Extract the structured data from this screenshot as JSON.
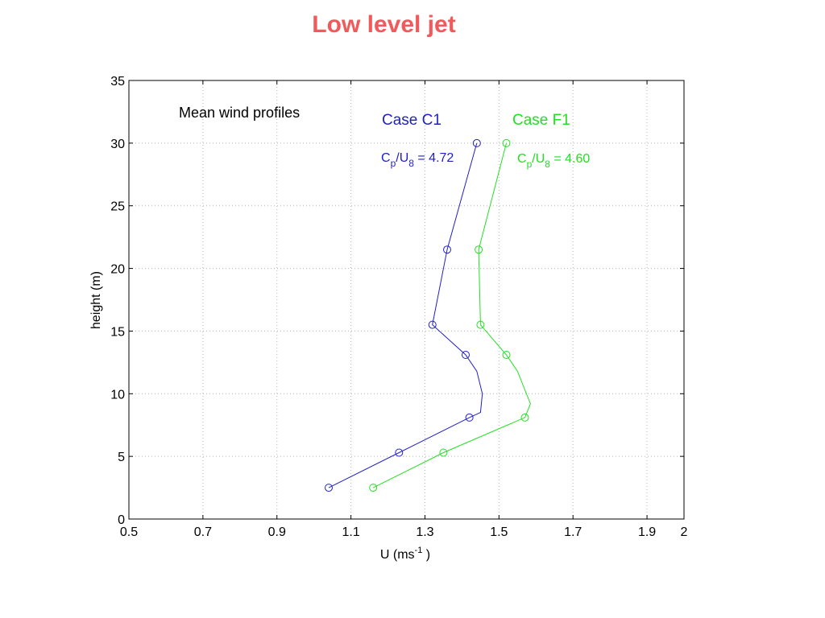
{
  "slide": {
    "title": "Low level jet"
  },
  "chart_data": {
    "type": "line",
    "title": "",
    "xlabel": "U (ms",
    "xlabel_sup": "-1",
    "xlabel_end": " )",
    "ylabel": "height (m)",
    "xlim": [
      0.5,
      2
    ],
    "ylim": [
      0,
      35
    ],
    "xticks": [
      "0.5",
      "0.7",
      "0.9",
      "1.1",
      "1.3",
      "1.5",
      "1.7",
      "1.9",
      "2"
    ],
    "yticks": [
      "0",
      "5",
      "10",
      "15",
      "20",
      "25",
      "30",
      "35"
    ],
    "grid": true,
    "annotation": "Mean wind profiles",
    "series": [
      {
        "name": "Case C1",
        "color": "#1f1fc8",
        "ratio_label": {
          "main": "C",
          "sub1": "p",
          "mid": "/U",
          "sub2": "8",
          "tail": " = 4.72"
        },
        "line": [
          [
            1.04,
            2.5
          ],
          [
            1.23,
            5.3
          ],
          [
            1.42,
            8.1
          ],
          [
            1.45,
            8.5
          ],
          [
            1.455,
            10.0
          ],
          [
            1.44,
            11.8
          ],
          [
            1.41,
            13.1
          ],
          [
            1.32,
            15.5
          ],
          [
            1.36,
            21.5
          ],
          [
            1.44,
            30.0
          ]
        ],
        "markers": [
          [
            1.04,
            2.5
          ],
          [
            1.23,
            5.3
          ],
          [
            1.42,
            8.1
          ],
          [
            1.41,
            13.1
          ],
          [
            1.32,
            15.5
          ],
          [
            1.36,
            21.5
          ],
          [
            1.44,
            30.0
          ]
        ]
      },
      {
        "name": "Case F1",
        "color": "#22e022",
        "ratio_label": {
          "main": "C",
          "sub1": "p",
          "mid": "/U",
          "sub2": "8",
          "tail": " = 4.60"
        },
        "line": [
          [
            1.16,
            2.5
          ],
          [
            1.35,
            5.3
          ],
          [
            1.57,
            8.1
          ],
          [
            1.585,
            9.2
          ],
          [
            1.55,
            11.8
          ],
          [
            1.52,
            13.1
          ],
          [
            1.45,
            15.5
          ],
          [
            1.445,
            21.5
          ],
          [
            1.52,
            30.0
          ]
        ],
        "markers": [
          [
            1.16,
            2.5
          ],
          [
            1.35,
            5.3
          ],
          [
            1.57,
            8.1
          ],
          [
            1.52,
            13.1
          ],
          [
            1.45,
            15.5
          ],
          [
            1.445,
            21.5
          ],
          [
            1.52,
            30.0
          ]
        ]
      }
    ]
  }
}
